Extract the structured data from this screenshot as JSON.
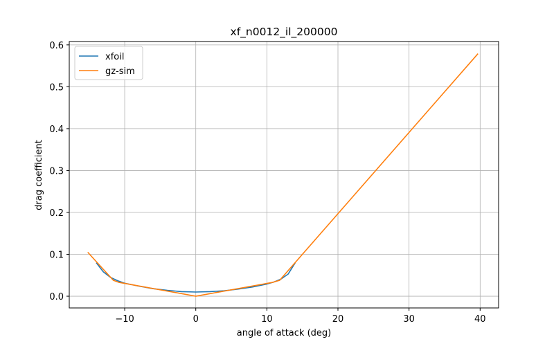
{
  "chart_data": {
    "type": "line",
    "title": "xf_n0012_il_200000",
    "x_label": "angle of attack (deg)",
    "y_label": "drag coefficient",
    "xlim": [
      -17.8,
      42.6
    ],
    "ylim": [
      -0.028,
      0.608
    ],
    "xticks": [
      {
        "value": -10,
        "label": "−10"
      },
      0,
      10,
      20,
      30,
      40
    ],
    "yticks": [
      {
        "value": 0,
        "label": "0.0"
      },
      0.1,
      0.2,
      0.3,
      0.4,
      0.5,
      0.6
    ],
    "grid": true,
    "legend": "upper-left",
    "series": [
      {
        "name": "xfoil",
        "color": "#1f77b4",
        "x": [
          -14,
          -13,
          -12,
          -11,
          -10,
          -8,
          -6,
          -4,
          -2,
          0,
          2,
          4,
          6,
          8,
          10,
          11,
          12,
          13,
          14
        ],
        "values": [
          0.08,
          0.058,
          0.045,
          0.037,
          0.031,
          0.024,
          0.018,
          0.014,
          0.011,
          0.01,
          0.011,
          0.013,
          0.017,
          0.022,
          0.029,
          0.034,
          0.041,
          0.053,
          0.08
        ]
      },
      {
        "name": "gz-sim",
        "color": "#ff7f0e",
        "x": [
          -15.2,
          -11.6,
          -10.8,
          0,
          10.8,
          11.8,
          39.7
        ],
        "values": [
          0.105,
          0.038,
          0.033,
          0.0,
          0.033,
          0.038,
          0.579
        ]
      }
    ]
  }
}
